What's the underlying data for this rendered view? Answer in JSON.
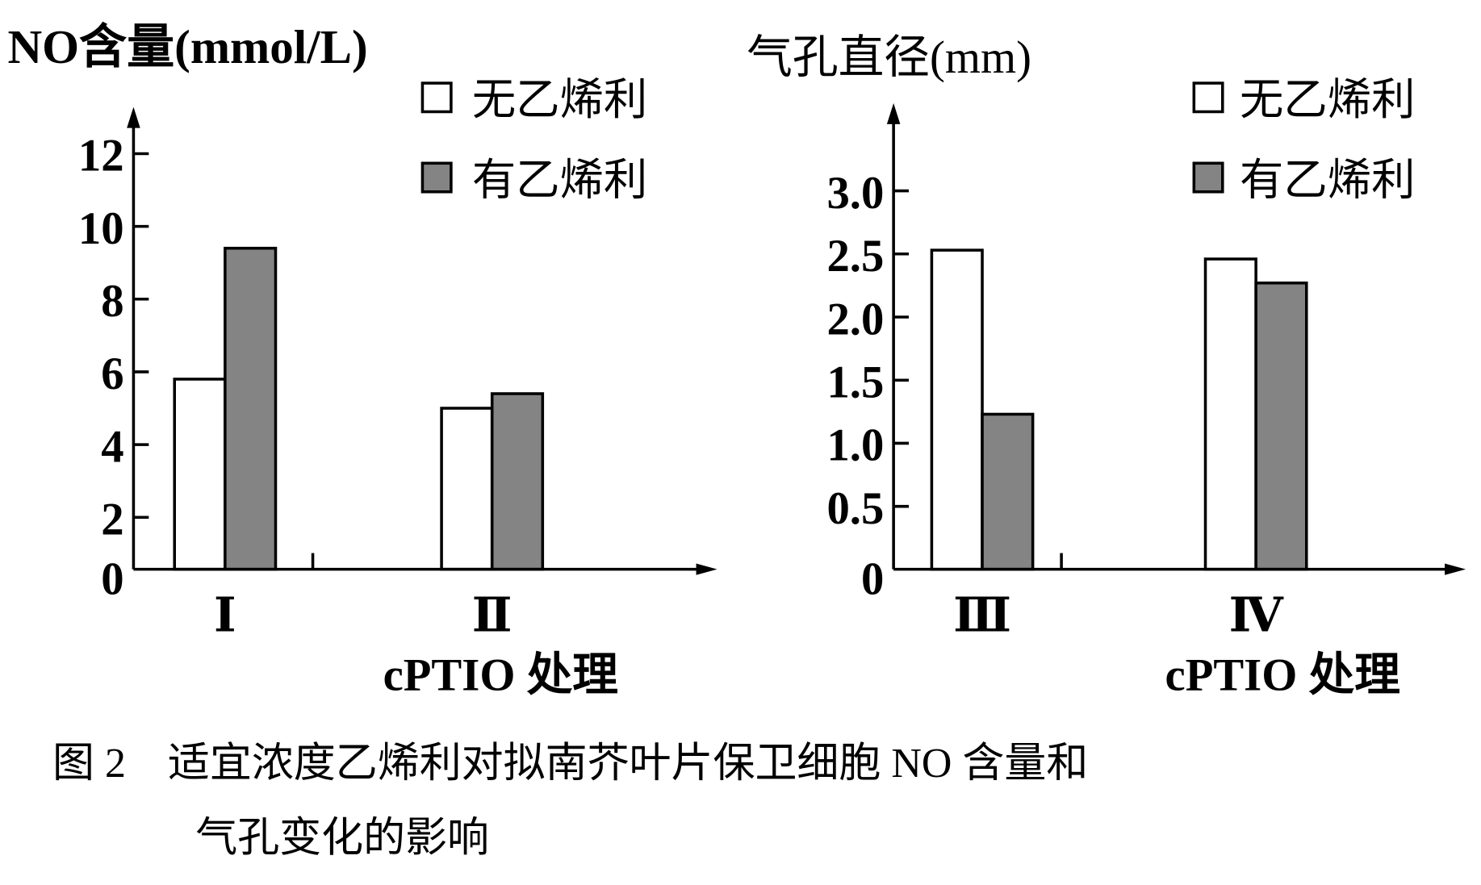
{
  "chart_data": [
    {
      "type": "bar",
      "title": "",
      "ylabel": "NO含量(mmol/L)",
      "xlabel": "cPTIO 处理",
      "categories": [
        "Ⅰ",
        "Ⅱ"
      ],
      "yticks": [
        "0",
        "2",
        "4",
        "6",
        "8",
        "10",
        "12"
      ],
      "ylim": [
        0,
        12
      ],
      "legend": [
        "无乙烯利",
        "有乙烯利"
      ],
      "legend_position": "top-right",
      "series": [
        {
          "name": "无乙烯利",
          "values": [
            5.8,
            5.0
          ],
          "color": "#ffffff"
        },
        {
          "name": "有乙烯利",
          "values": [
            9.4,
            5.4
          ],
          "color": "#848484"
        }
      ]
    },
    {
      "type": "bar",
      "title": "",
      "ylabel": "气孔直径(mm)",
      "xlabel": "cPTIO 处理",
      "categories": [
        "Ⅲ",
        "Ⅳ"
      ],
      "yticks": [
        "0",
        "0.5",
        "1.0",
        "1.5",
        "2.0",
        "2.5",
        "3.0"
      ],
      "ylim": [
        0,
        3.0
      ],
      "legend": [
        "无乙烯利",
        "有乙烯利"
      ],
      "legend_position": "top-right",
      "series": [
        {
          "name": "无乙烯利",
          "values": [
            2.53,
            2.46
          ],
          "color": "#ffffff"
        },
        {
          "name": "有乙烯利",
          "values": [
            1.23,
            2.27
          ],
          "color": "#848484"
        }
      ]
    }
  ],
  "caption": {
    "line1": "图 2　适宜浓度乙烯利对拟南芥叶片保卫细胞 NO 含量和",
    "line2": "气孔变化的影响"
  }
}
